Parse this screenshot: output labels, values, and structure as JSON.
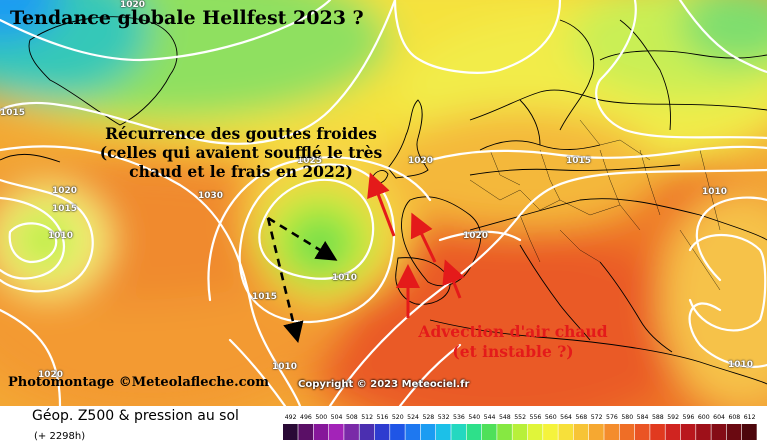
{
  "title": "Tendance globale Hellfest 2023 ?",
  "annotation_recurrence": "Récurrence des gouttes froides (celles qui avaient soufflé le très chaud et le frais en 2022)",
  "annotation_advection": "Advection d'air chaud (et instable ?)",
  "credit_photomontage": "Photomontage ©Meteolafleche.com",
  "credit_copyright": "Copyright © 2023 Meteociel.fr",
  "footer": {
    "label": "Géop. Z500 & pression au sol",
    "sub": "(+ 2298h)"
  },
  "isobars": [
    "1020",
    "1015",
    "1020",
    "1015",
    "1010",
    "1025",
    "1030",
    "1020",
    "1015",
    "1010",
    "1020",
    "1010",
    "1015",
    "1010",
    "1020",
    "1010"
  ],
  "scale": {
    "ticks": [
      "492",
      "496",
      "500",
      "504",
      "508",
      "512",
      "516",
      "520",
      "524",
      "528",
      "532",
      "536",
      "540",
      "544",
      "548",
      "552",
      "556",
      "560",
      "564",
      "568",
      "572",
      "576",
      "580",
      "584",
      "588",
      "592",
      "596",
      "600",
      "604",
      "608",
      "612"
    ],
    "colors": [
      "#2a0a36",
      "#5a0f66",
      "#86179a",
      "#a323b8",
      "#7a2aa8",
      "#4b2fb0",
      "#2e3cd0",
      "#1f55e6",
      "#1e78f0",
      "#1c9cf2",
      "#1cc0e8",
      "#24d8c0",
      "#2ee08a",
      "#4fe05a",
      "#86e842",
      "#b8f03a",
      "#e0f53a",
      "#f5f33c",
      "#f7e03a",
      "#f7c436",
      "#f6a831",
      "#f48c2c",
      "#ef6e26",
      "#ea5424",
      "#e13a1f",
      "#d02420",
      "#b9171d",
      "#9e1019",
      "#840c16",
      "#6a0911",
      "#4d060c"
    ]
  },
  "colors": {
    "annotation_red": "#e41a1a",
    "arrow_black": "#000000",
    "contour_white": "#ffffff"
  }
}
